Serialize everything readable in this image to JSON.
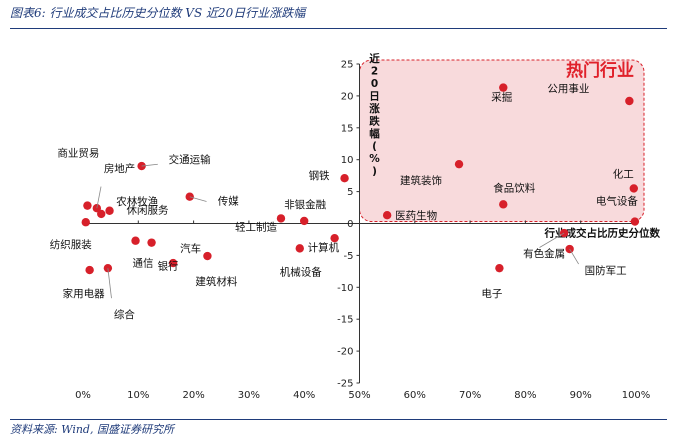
{
  "header": {
    "title": "图表6: 行业成交占比历史分位数 VS 近20日行业涨跌幅"
  },
  "footer": {
    "source": "资料来源: Wind, 国盛证券研究所"
  },
  "chart_data": {
    "type": "scatter",
    "title": "",
    "xlabel": "行业成交占比历史分位数",
    "ylabel": "近20日涨跌幅(%)",
    "xlim": [
      0,
      100
    ],
    "ylim": [
      -25,
      25
    ],
    "x_ticks": [
      "0%",
      "10%",
      "20%",
      "30%",
      "40%",
      "50%",
      "60%",
      "70%",
      "80%",
      "90%",
      "100%"
    ],
    "y_ticks": [
      "25",
      "20",
      "15",
      "10",
      "5",
      "0",
      "-5",
      "-10",
      "-15",
      "-20",
      "-25"
    ],
    "highlight_label": "热门行业",
    "grid": false,
    "point_color": "#d7202a",
    "region_color": "#f7d3d6",
    "points": [
      {
        "name": "商业贸易",
        "x": 0.8,
        "y": 2.8
      },
      {
        "name": "房地产",
        "x": 2.5,
        "y": 2.4
      },
      {
        "name": "农林牧渔",
        "x": 3.3,
        "y": 1.5
      },
      {
        "name": "休闲服务",
        "x": 4.8,
        "y": 2.0
      },
      {
        "name": "纺织服装",
        "x": 0.5,
        "y": 0.2
      },
      {
        "name": "家用电器",
        "x": 1.2,
        "y": -7.3
      },
      {
        "name": "综合",
        "x": 4.5,
        "y": -7.0
      },
      {
        "name": "交通运输",
        "x": 10.6,
        "y": 9.0
      },
      {
        "name": "通信",
        "x": 9.5,
        "y": -2.7
      },
      {
        "name": "银行",
        "x": 12.4,
        "y": -3.0
      },
      {
        "name": "汽车",
        "x": 16.3,
        "y": -6.2
      },
      {
        "name": "传媒",
        "x": 19.3,
        "y": 4.2
      },
      {
        "name": "建筑材料",
        "x": 22.5,
        "y": -5.1
      },
      {
        "name": "轻工制造",
        "x": 35.8,
        "y": 0.8
      },
      {
        "name": "非银金融",
        "x": 40.0,
        "y": 0.4
      },
      {
        "name": "钢铁",
        "x": 47.3,
        "y": 7.1
      },
      {
        "name": "机械设备",
        "x": 39.2,
        "y": -3.9
      },
      {
        "name": "计算机",
        "x": 45.5,
        "y": -2.3
      },
      {
        "name": "医药生物",
        "x": 55.0,
        "y": 1.3
      },
      {
        "name": "建筑装饰",
        "x": 68.0,
        "y": 9.3
      },
      {
        "name": "采掘",
        "x": 76.0,
        "y": 21.3
      },
      {
        "name": "食品饮料",
        "x": 76.0,
        "y": 3.0
      },
      {
        "name": "公用事业",
        "x": 98.8,
        "y": 19.2
      },
      {
        "name": "化工",
        "x": 99.6,
        "y": 5.5
      },
      {
        "name": "电气设备",
        "x": 99.8,
        "y": 0.3
      },
      {
        "name": "有色金属",
        "x": 87.0,
        "y": -1.5
      },
      {
        "name": "国防军工",
        "x": 88.0,
        "y": -4.0
      },
      {
        "name": "电子",
        "x": 75.3,
        "y": -7.0
      }
    ]
  }
}
